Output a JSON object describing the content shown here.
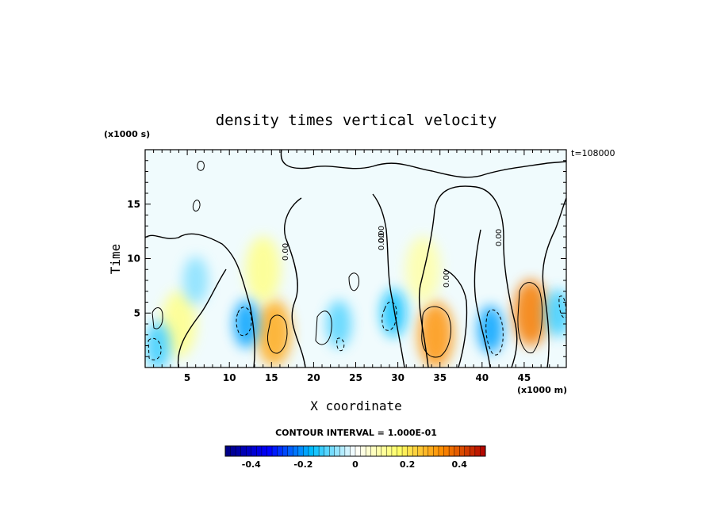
{
  "chart_data": {
    "type": "heatmap",
    "title": "density times vertical velocity",
    "xlabel": "X coordinate",
    "ylabel": "Time",
    "x_unit": "(x1000 m)",
    "y_unit": "(x1000 s)",
    "time_label": "t=108000",
    "xlim": [
      0,
      50
    ],
    "ylim": [
      0,
      20
    ],
    "x_ticks": [
      5,
      10,
      15,
      20,
      25,
      30,
      35,
      40,
      45
    ],
    "y_ticks": [
      5,
      10,
      15
    ],
    "contour_interval_text": "CONTOUR INTERVAL = 1.000E-01",
    "contour_labels": [
      "0.00",
      "0.00",
      "0.00",
      "0.00",
      "0.00"
    ],
    "colorbar": {
      "range": [
        -0.5,
        0.5
      ],
      "ticks": [
        -0.4,
        -0.2,
        0,
        0.2,
        0.4
      ],
      "tick_labels": [
        "-0.4",
        "-0.2",
        "0",
        "0.2",
        "0.4"
      ],
      "colors": [
        "#000080",
        "#0000ff",
        "#00bfff",
        "#ffffff",
        "#ffff66",
        "#ff8c00",
        "#b00000"
      ]
    },
    "positive_features": [
      {
        "x": 15.3,
        "t": 3.2,
        "value": 0.18
      },
      {
        "x": 34.5,
        "t": 3.0,
        "value": 0.2
      },
      {
        "x": 45.8,
        "t": 5.0,
        "value": 0.22
      },
      {
        "x": 14.0,
        "t": 9.0,
        "value": 0.08
      },
      {
        "x": 4.0,
        "t": 4.0,
        "value": 0.08
      },
      {
        "x": 33.0,
        "t": 9.0,
        "value": 0.06
      }
    ],
    "negative_features": [
      {
        "x": 12.0,
        "t": 4.0,
        "value": -0.12
      },
      {
        "x": 29.5,
        "t": 5.0,
        "value": -0.1
      },
      {
        "x": 41.0,
        "t": 3.5,
        "value": -0.12
      },
      {
        "x": 1.5,
        "t": 2.0,
        "value": -0.08
      },
      {
        "x": 23.0,
        "t": 4.0,
        "value": -0.07
      },
      {
        "x": 49.0,
        "t": 5.0,
        "value": -0.08
      },
      {
        "x": 6.0,
        "t": 8.0,
        "value": -0.05
      }
    ]
  }
}
